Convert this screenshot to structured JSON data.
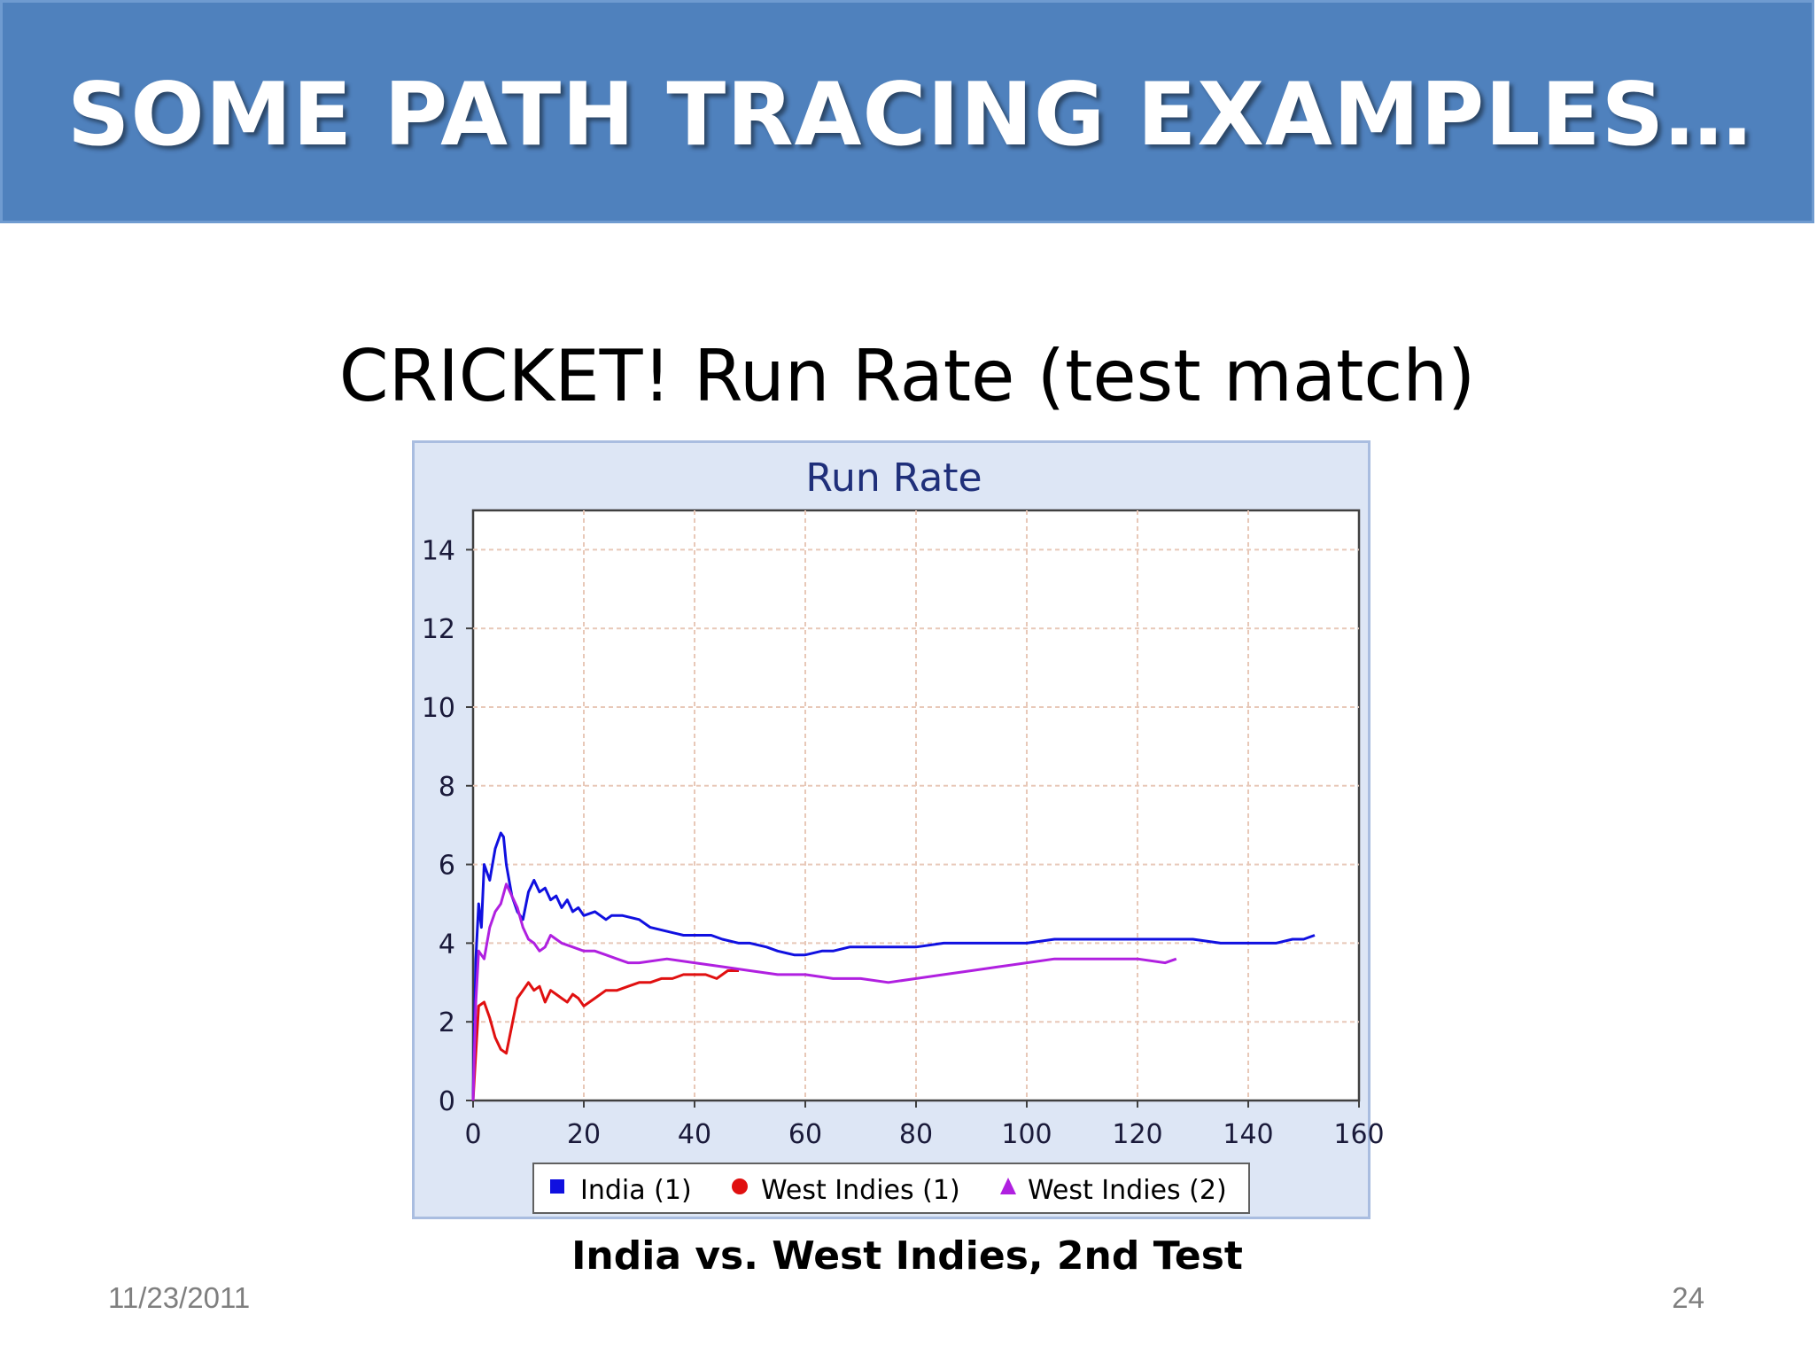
{
  "slide": {
    "title": "SOME PATH TRACING EXAMPLES…",
    "subtitle": "CRICKET! Run Rate (test match)",
    "caption": "India vs. West Indies, 2nd Test",
    "date": "11/23/2011",
    "page_number": "24"
  },
  "colors": {
    "banner": "#4f81bd",
    "chart_background": "#dde6f5",
    "plot_background": "#ffffff",
    "grid": "#e8c8b8",
    "title_text": "#1f2f7a"
  },
  "chart_data": {
    "type": "line",
    "title": "Run Rate",
    "xlabel": "",
    "ylabel": "",
    "xlim": [
      0,
      160
    ],
    "ylim": [
      0,
      15
    ],
    "xticks": [
      "0",
      "20",
      "40",
      "60",
      "80",
      "100",
      "120",
      "140",
      "160"
    ],
    "yticks": [
      "0",
      "2",
      "4",
      "6",
      "8",
      "10",
      "12",
      "14"
    ],
    "grid": true,
    "legend_position": "bottom",
    "series": [
      {
        "name": "India (1)",
        "color": "#1010e0",
        "marker": "square",
        "x": [
          0,
          0.5,
          1,
          1.5,
          2,
          3,
          4,
          5,
          5.5,
          6,
          7,
          8,
          9,
          10,
          11,
          12,
          13,
          14,
          15,
          16,
          17,
          18,
          19,
          20,
          22,
          24,
          25,
          27,
          30,
          32,
          35,
          38,
          40,
          43,
          45,
          48,
          50,
          53,
          55,
          58,
          60,
          63,
          65,
          68,
          70,
          75,
          80,
          85,
          90,
          95,
          100,
          105,
          110,
          120,
          130,
          135,
          140,
          143,
          145,
          148,
          150,
          152
        ],
        "y": [
          0,
          3.6,
          5.0,
          4.4,
          6.0,
          5.6,
          6.4,
          6.8,
          6.7,
          6.0,
          5.2,
          4.8,
          4.6,
          5.3,
          5.6,
          5.3,
          5.4,
          5.1,
          5.2,
          4.9,
          5.1,
          4.8,
          4.9,
          4.7,
          4.8,
          4.6,
          4.7,
          4.7,
          4.6,
          4.4,
          4.3,
          4.2,
          4.2,
          4.2,
          4.1,
          4.0,
          4.0,
          3.9,
          3.8,
          3.7,
          3.7,
          3.8,
          3.8,
          3.9,
          3.9,
          3.9,
          3.9,
          4.0,
          4.0,
          4.0,
          4.0,
          4.1,
          4.1,
          4.1,
          4.1,
          4.0,
          4.0,
          4.0,
          4.0,
          4.1,
          4.1,
          4.2
        ]
      },
      {
        "name": "West Indies (1)",
        "color": "#e01010",
        "marker": "circle",
        "x": [
          0,
          0.5,
          1,
          2,
          3,
          4,
          5,
          6,
          7,
          8,
          9,
          10,
          11,
          12,
          13,
          14,
          15,
          16,
          17,
          18,
          19,
          20,
          22,
          24,
          26,
          28,
          30,
          32,
          34,
          36,
          38,
          40,
          42,
          44,
          46,
          48
        ],
        "y": [
          0,
          1.2,
          2.4,
          2.5,
          2.1,
          1.6,
          1.3,
          1.2,
          1.9,
          2.6,
          2.8,
          3.0,
          2.8,
          2.9,
          2.5,
          2.8,
          2.7,
          2.6,
          2.5,
          2.7,
          2.6,
          2.4,
          2.6,
          2.8,
          2.8,
          2.9,
          3.0,
          3.0,
          3.1,
          3.1,
          3.2,
          3.2,
          3.2,
          3.1,
          3.3,
          3.3
        ]
      },
      {
        "name": "West Indies (2)",
        "color": "#b020e0",
        "marker": "triangle",
        "x": [
          0,
          0.5,
          1,
          2,
          3,
          4,
          5,
          6,
          7,
          8,
          9,
          10,
          11,
          12,
          13,
          14,
          15,
          16,
          18,
          20,
          22,
          24,
          26,
          28,
          30,
          35,
          40,
          45,
          50,
          55,
          60,
          65,
          70,
          75,
          80,
          85,
          90,
          95,
          100,
          105,
          110,
          115,
          120,
          125,
          127
        ],
        "y": [
          0,
          2.5,
          3.8,
          3.6,
          4.4,
          4.8,
          5.0,
          5.5,
          5.2,
          4.9,
          4.4,
          4.1,
          4.0,
          3.8,
          3.9,
          4.2,
          4.1,
          4.0,
          3.9,
          3.8,
          3.8,
          3.7,
          3.6,
          3.5,
          3.5,
          3.6,
          3.5,
          3.4,
          3.3,
          3.2,
          3.2,
          3.1,
          3.1,
          3.0,
          3.1,
          3.2,
          3.3,
          3.4,
          3.5,
          3.6,
          3.6,
          3.6,
          3.6,
          3.5,
          3.6
        ]
      }
    ]
  }
}
